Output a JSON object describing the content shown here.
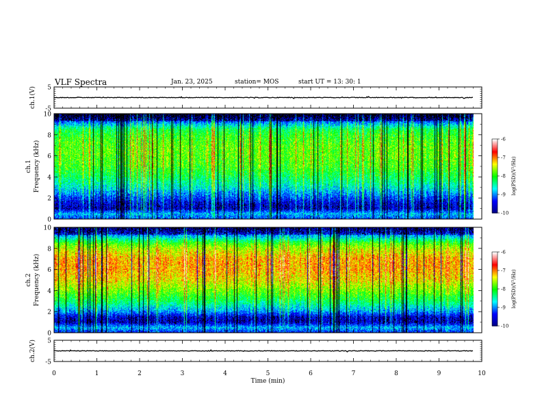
{
  "header": {
    "title": "VLF Spectra",
    "date": "Jan. 23, 2025",
    "station": "station= MOS",
    "start_ut": "start  UT =   13: 30: 1"
  },
  "xaxis": {
    "label": "Time  (min)",
    "range": [
      0,
      10
    ],
    "ticks": [
      "0",
      "1",
      "2",
      "3",
      "4",
      "5",
      "6",
      "7",
      "8",
      "9",
      "10"
    ]
  },
  "colorbar": {
    "label": "log(PSD)(V²/Hz)",
    "range": [
      -10,
      -6
    ],
    "ticks": [
      "-6",
      "-7",
      "-8",
      "-9",
      "-10"
    ],
    "colors": [
      "#000080",
      "#0000ff",
      "#00ffff",
      "#00ff00",
      "#ffff00",
      "#ff0000",
      "#ffffff"
    ]
  },
  "chart_data": [
    {
      "type": "line",
      "id": "ch1-waveform",
      "ylabel": "ch.1(V)",
      "ylim": [
        -5,
        5
      ],
      "yticks": [
        "5",
        "-5"
      ],
      "x": [
        0,
        9.8
      ],
      "series": [
        {
          "values": [
            0,
            0
          ]
        }
      ]
    },
    {
      "type": "heatmap",
      "id": "ch1-spectrogram",
      "ylabel_lines": [
        "ch.1",
        "Frequency (kHz)"
      ],
      "xlim": [
        0,
        9.8
      ],
      "ylim": [
        0,
        10
      ],
      "yticks": [
        "0",
        "2",
        "4",
        "6",
        "8",
        "10"
      ],
      "profile_kHz": [
        0,
        0.5,
        1,
        1.5,
        2,
        3,
        4,
        5,
        6,
        7,
        8,
        8.5,
        9,
        9.5,
        10
      ],
      "profile_log_psd": [
        -9.2,
        -8.8,
        -9.6,
        -9.5,
        -9.2,
        -8.6,
        -8.2,
        -7.9,
        -7.8,
        -7.8,
        -8.0,
        -8.2,
        -8.8,
        -9.4,
        -9.8
      ]
    },
    {
      "type": "heatmap",
      "id": "ch2-spectrogram",
      "ylabel_lines": [
        "ch.2",
        "Frequency (kHz)"
      ],
      "xlim": [
        0,
        9.8
      ],
      "ylim": [
        0,
        10
      ],
      "yticks": [
        "0",
        "2",
        "4",
        "6",
        "8",
        "10"
      ],
      "profile_kHz": [
        0,
        0.5,
        1,
        1.5,
        2,
        3,
        4,
        5,
        6,
        7,
        8,
        8.5,
        9,
        9.5,
        10
      ],
      "profile_log_psd": [
        -9.3,
        -8.8,
        -9.6,
        -9.5,
        -8.9,
        -8.2,
        -7.7,
        -7.3,
        -7.1,
        -7.1,
        -7.5,
        -7.9,
        -8.6,
        -9.2,
        -9.5
      ]
    },
    {
      "type": "line",
      "id": "ch2-waveform",
      "ylabel": "ch.2(V)",
      "ylim": [
        -5,
        5
      ],
      "yticks": [
        "5",
        "-5"
      ],
      "x": [
        0,
        9.8
      ],
      "series": [
        {
          "values": [
            0,
            0
          ]
        }
      ]
    }
  ]
}
